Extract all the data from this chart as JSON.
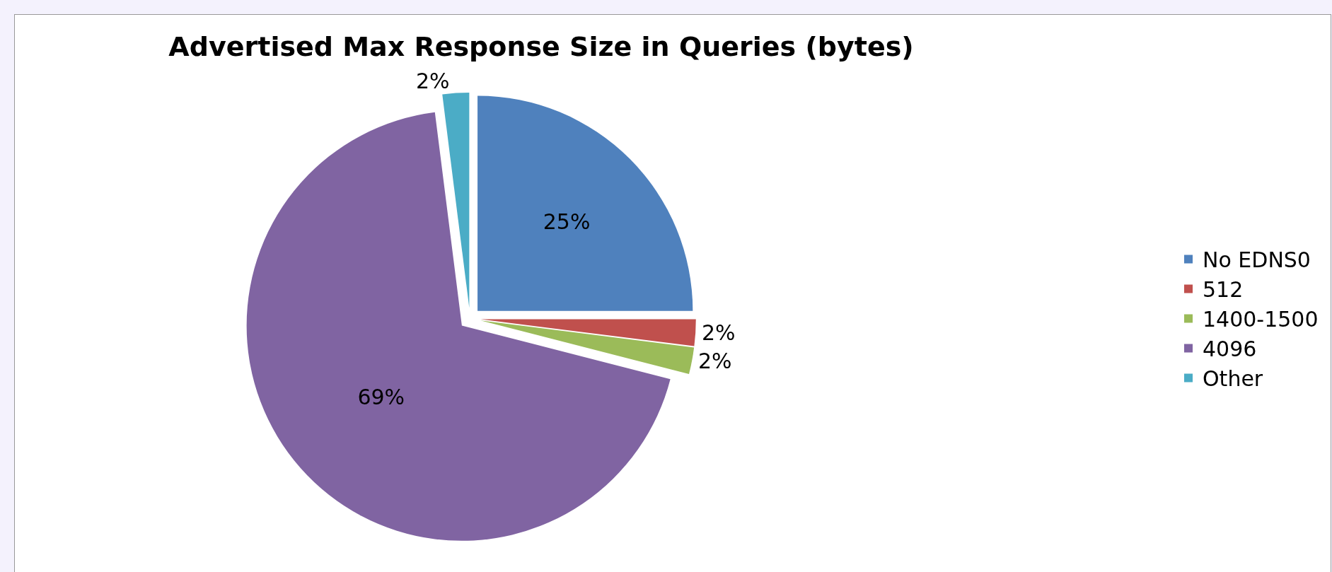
{
  "chart_data": {
    "type": "pie",
    "title": "Advertised Max Response Size in Queries (bytes)",
    "categories": [
      "No EDNS0",
      "512",
      "1400-1500",
      "4096",
      "Other"
    ],
    "values": [
      25,
      2,
      2,
      69,
      2
    ],
    "value_labels": [
      "25%",
      "2%",
      "2%",
      "69%",
      "2%"
    ],
    "colors": [
      "#4f81bd",
      "#c0504d",
      "#9bbb59",
      "#8064a2",
      "#4bacc6"
    ],
    "legend": "right"
  }
}
